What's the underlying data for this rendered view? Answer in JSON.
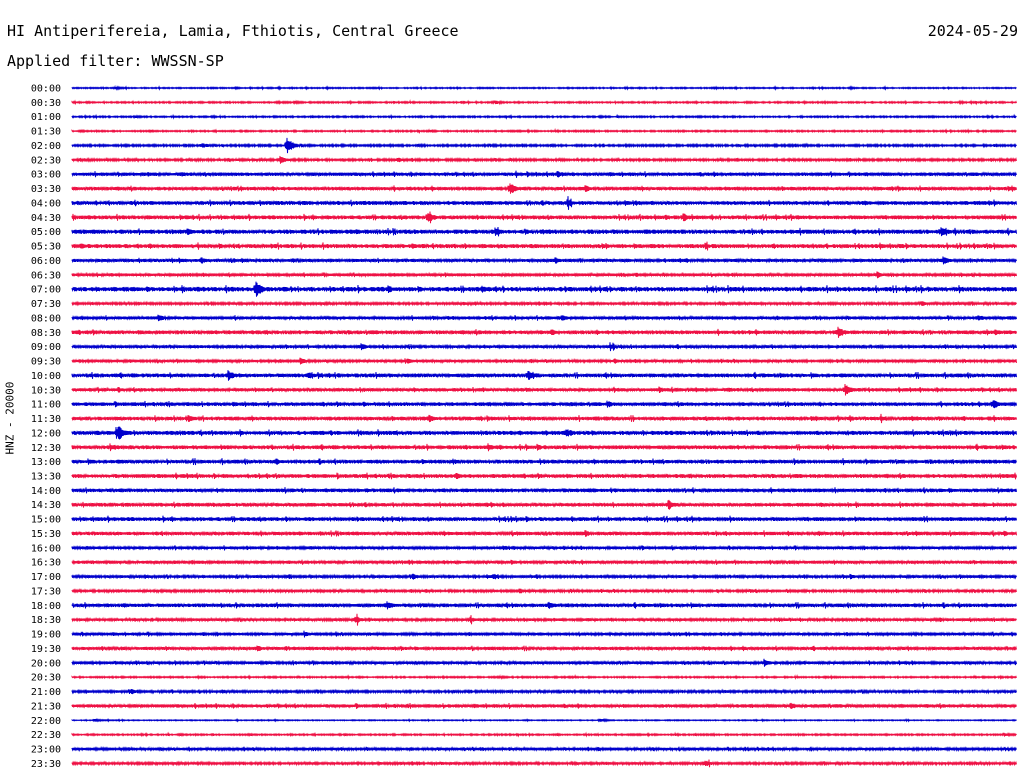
{
  "header": {
    "station": "HI Antiperifereia, Lamia, Fthiotis, Central Greece",
    "date": "2024-05-29",
    "filter": "Applied filter: WWSSN-SP"
  },
  "channel_label": "HNZ - 20000",
  "chart_data": {
    "type": "line",
    "title": "HI Antiperifereia, Lamia, Fthiotis, Central Greece",
    "subtitle": "Applied filter: WWSSN-SP",
    "ylabel": "HNZ - 20000",
    "xlabel": "",
    "categories": [
      "00:00",
      "00:30",
      "01:00",
      "01:30",
      "02:00",
      "02:30",
      "03:00",
      "03:30",
      "04:00",
      "04:30",
      "05:00",
      "05:30",
      "06:00",
      "06:30",
      "07:00",
      "07:30",
      "08:00",
      "08:30",
      "09:00",
      "09:30",
      "10:00",
      "10:30",
      "11:00",
      "11:30",
      "12:00",
      "12:30",
      "13:00",
      "13:30",
      "14:00",
      "14:30",
      "15:00",
      "15:30",
      "16:00",
      "16:30",
      "17:00",
      "17:30",
      "18:00",
      "18:30",
      "19:00",
      "19:30",
      "20:00",
      "20:30",
      "21:00",
      "21:30",
      "22:00",
      "22:30",
      "23:00",
      "23:30"
    ],
    "colors": [
      "#0000cc",
      "#ee1144"
    ],
    "noise_level": [
      0.5,
      0.6,
      0.6,
      0.6,
      0.8,
      0.9,
      1.4,
      1.5,
      1.6,
      1.6,
      1.8,
      1.7,
      1.3,
      1.2,
      1.9,
      1.0,
      1.3,
      1.6,
      1.2,
      1.1,
      1.6,
      1.4,
      1.5,
      1.6,
      1.7,
      1.6,
      1.6,
      1.6,
      1.5,
      1.5,
      1.6,
      1.5,
      1.2,
      1.3,
      1.1,
      1.0,
      1.5,
      1.1,
      1.2,
      1.3,
      1.2,
      0.6,
      1.0,
      1.4,
      0.4,
      0.6,
      1.1,
      1.0
    ],
    "events": [
      [
        [
          115,
          1.5
        ],
        [
          235,
          1.2
        ],
        [
          850,
          1.2
        ]
      ],
      [
        [
          295,
          1.6
        ],
        [
          495,
          2.2
        ],
        [
          960,
          1.0
        ]
      ],
      [
        [
          135,
          1.4
        ],
        [
          600,
          1.0
        ]
      ],
      [
        [
          430,
          1.3
        ],
        [
          965,
          1.0
        ]
      ],
      [
        [
          202,
          3.0
        ],
        [
          287,
          8.0
        ],
        [
          520,
          1.4
        ],
        [
          805,
          1.2
        ]
      ],
      [
        [
          280,
          4.0
        ],
        [
          397,
          3.0
        ]
      ],
      [
        [
          516,
          2.2
        ],
        [
          557,
          4.0
        ],
        [
          821,
          2.0
        ]
      ],
      [
        [
          510,
          6.0
        ],
        [
          585,
          4.0
        ],
        [
          1008,
          3.2
        ]
      ],
      [
        [
          567,
          5.0
        ],
        [
          625,
          3.0
        ],
        [
          989,
          2.5
        ]
      ],
      [
        [
          180,
          2.8
        ],
        [
          428,
          6.0
        ],
        [
          665,
          3.0
        ],
        [
          683,
          5.0
        ],
        [
          797,
          2.8
        ]
      ],
      [
        [
          187,
          5.0
        ],
        [
          495,
          4.5
        ],
        [
          526,
          2.8
        ],
        [
          941,
          6.0
        ]
      ],
      [
        [
          80,
          3.5
        ],
        [
          113,
          2.5
        ],
        [
          412,
          3.5
        ],
        [
          705,
          3.5
        ]
      ],
      [
        [
          201,
          3.5
        ],
        [
          555,
          3.5
        ],
        [
          943,
          4.0
        ]
      ],
      [
        [
          111,
          2.0
        ],
        [
          877,
          3.5
        ],
        [
          961,
          2.5
        ]
      ],
      [
        [
          256,
          8.0
        ],
        [
          388,
          4.0
        ],
        [
          482,
          4.0
        ]
      ],
      [
        [
          463,
          2.5
        ],
        [
          921,
          3.0
        ]
      ],
      [
        [
          158,
          4.0
        ],
        [
          561,
          3.5
        ],
        [
          978,
          3.5
        ]
      ],
      [
        [
          551,
          4.0
        ],
        [
          838,
          6.0
        ],
        [
          995,
          3.5
        ]
      ],
      [
        [
          361,
          3.5
        ],
        [
          610,
          3.5
        ]
      ],
      [
        [
          300,
          3.5
        ],
        [
          407,
          3.0
        ],
        [
          614,
          3.0
        ]
      ],
      [
        [
          228,
          6.0
        ],
        [
          308,
          4.0
        ],
        [
          528,
          5.0
        ]
      ],
      [
        [
          659,
          3.5
        ],
        [
          845,
          6.0
        ]
      ],
      [
        [
          363,
          3.0
        ],
        [
          607,
          4.0
        ],
        [
          993,
          5.0
        ]
      ],
      [
        [
          188,
          4.0
        ],
        [
          429,
          4.0
        ],
        [
          880,
          3.0
        ]
      ],
      [
        [
          118,
          8.0
        ],
        [
          566,
          5.0
        ],
        [
          520,
          2.5
        ]
      ],
      [
        [
          110,
          4.0
        ],
        [
          488,
          4.0
        ],
        [
          537,
          3.5
        ]
      ],
      [
        [
          276,
          3.5
        ],
        [
          422,
          3.0
        ]
      ],
      [
        [
          456,
          3.5
        ],
        [
          567,
          3.0
        ],
        [
          1006,
          2.5
        ]
      ],
      [
        [
          367,
          2.5
        ],
        [
          949,
          3.0
        ]
      ],
      [
        [
          491,
          3.0
        ],
        [
          668,
          4.5
        ]
      ],
      [
        [
          511,
          2.0
        ]
      ],
      [
        [
          585,
          3.5
        ],
        [
          1004,
          3.0
        ]
      ],
      [
        [
          503,
          3.0
        ]
      ],
      [
        [
          511,
          3.0
        ]
      ],
      [
        [
          412,
          3.5
        ],
        [
          493,
          3.5
        ],
        [
          850,
          3.0
        ]
      ],
      [
        [
          519,
          3.0
        ],
        [
          750,
          2.5
        ]
      ],
      [
        [
          387,
          4.5
        ],
        [
          548,
          4.0
        ]
      ],
      [
        [
          355,
          4.5
        ],
        [
          470,
          3.0
        ]
      ],
      [
        [
          304,
          3.0
        ],
        [
          830,
          2.0
        ]
      ],
      [
        [
          257,
          3.5
        ],
        [
          415,
          2.5
        ]
      ],
      [
        [
          764,
          4.0
        ]
      ],
      [
        [
          500,
          1.5
        ]
      ],
      [
        [
          131,
          3.0
        ]
      ],
      [
        [
          790,
          4.0
        ]
      ],
      [
        [
          95,
          1.5
        ],
        [
          600,
          1.8
        ]
      ],
      [
        [
          1004,
          2.0
        ]
      ],
      [
        [
          565,
          2.0
        ]
      ],
      [
        [
          441,
          2.0
        ],
        [
          705,
          4.0
        ]
      ]
    ]
  }
}
